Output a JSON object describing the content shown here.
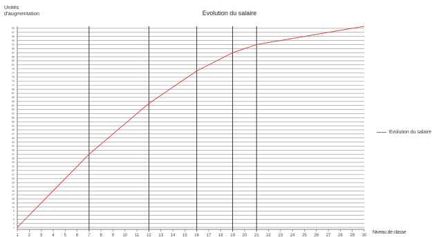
{
  "chart_data": {
    "type": "line",
    "title": "Evolution du salaire",
    "ylabel": "Unités\nd'augmentation",
    "xlabel": "Niveau de classe",
    "x": [
      1,
      2,
      3,
      4,
      5,
      6,
      7,
      8,
      9,
      10,
      11,
      12,
      13,
      14,
      15,
      16,
      17,
      18,
      19,
      20,
      21,
      22,
      23,
      24,
      25,
      26,
      27,
      28,
      29,
      30
    ],
    "xlim": [
      1,
      30
    ],
    "ylim": [
      0,
      100
    ],
    "y_ticks": [
      1,
      3,
      5,
      7,
      9,
      11,
      13,
      15,
      17,
      19,
      21,
      23,
      25,
      27,
      29,
      31,
      33,
      35,
      37,
      39,
      41,
      43,
      45,
      47,
      49,
      51,
      53,
      55,
      57,
      59,
      61,
      63,
      65,
      67,
      69,
      71,
      73,
      75,
      77,
      79,
      81,
      83,
      85,
      87,
      89,
      91,
      93,
      95,
      97,
      99
    ],
    "grid": "horizontal",
    "vertical_markers": [
      7,
      12,
      16,
      19,
      21
    ],
    "legend_position": "right",
    "series": [
      {
        "name": "Evolution du salaire",
        "color": "#e04040",
        "values": [
          1,
          7,
          13,
          19,
          25,
          31,
          37,
          42,
          47,
          52,
          57,
          62,
          66,
          70,
          74,
          78,
          81,
          84,
          87,
          89,
          91,
          92,
          93,
          94,
          95,
          96,
          97,
          98,
          99,
          100
        ]
      }
    ]
  }
}
